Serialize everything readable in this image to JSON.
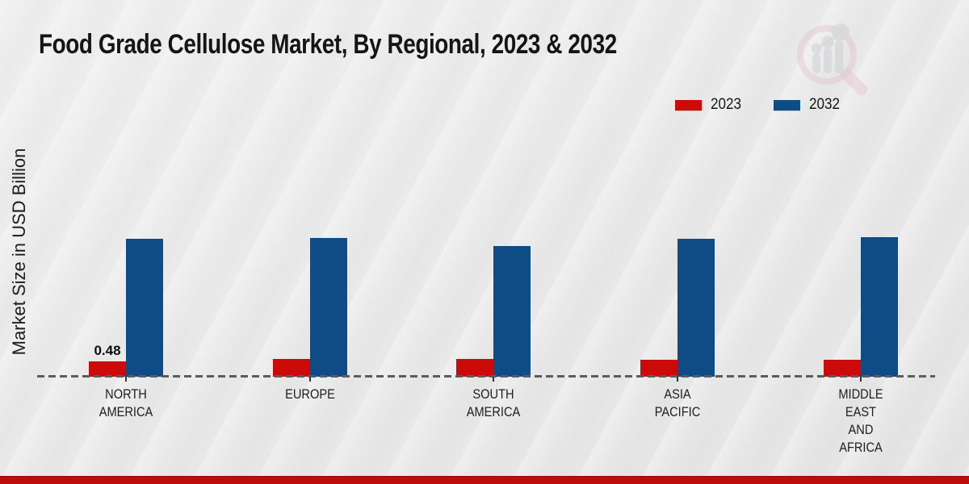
{
  "page": {
    "title": "Food Grade Cellulose Market, By Regional, 2023 & 2032",
    "y_axis_label": "Market Size in USD Billion",
    "background_color": "#e9e9e9",
    "footer_color": "#be0b0b"
  },
  "legend": {
    "items": [
      {
        "label": "2023",
        "color": "#cc0a0a"
      },
      {
        "label": "2032",
        "color": "#0f4c85"
      }
    ]
  },
  "icons": {
    "watermark": "magnifier-bar-chart-logo",
    "watermark_ring_color": "#dfb4bd",
    "watermark_bars_color": "#c9cacf"
  },
  "chart_data": {
    "type": "bar",
    "title": "Food Grade Cellulose Market, By Regional, 2023 & 2032",
    "xlabel": "",
    "ylabel": "Market Size in USD Billion",
    "ylim": [
      0,
      5
    ],
    "grid": false,
    "legend_position": "top-right",
    "baseline_style": "dashed",
    "categories": [
      "NORTH AMERICA",
      "EUROPE",
      "SOUTH AMERICA",
      "ASIA PACIFIC",
      "MIDDLE EAST AND AFRICA"
    ],
    "categories_display": [
      [
        "NORTH",
        "AMERICA"
      ],
      [
        "EUROPE"
      ],
      [
        "SOUTH",
        "AMERICA"
      ],
      [
        "ASIA",
        "PACIFIC"
      ],
      [
        "MIDDLE",
        "EAST",
        "AND",
        "AFRICA"
      ]
    ],
    "series": [
      {
        "name": "2023",
        "color": "#cc0a0a",
        "values": [
          0.48,
          0.55,
          0.55,
          0.53,
          0.53
        ]
      },
      {
        "name": "2032",
        "color": "#0f4c85",
        "values": [
          4.35,
          4.38,
          4.12,
          4.36,
          4.4
        ]
      }
    ],
    "data_labels": [
      {
        "series_index": 0,
        "category_index": 0,
        "text": "0.48"
      }
    ]
  }
}
